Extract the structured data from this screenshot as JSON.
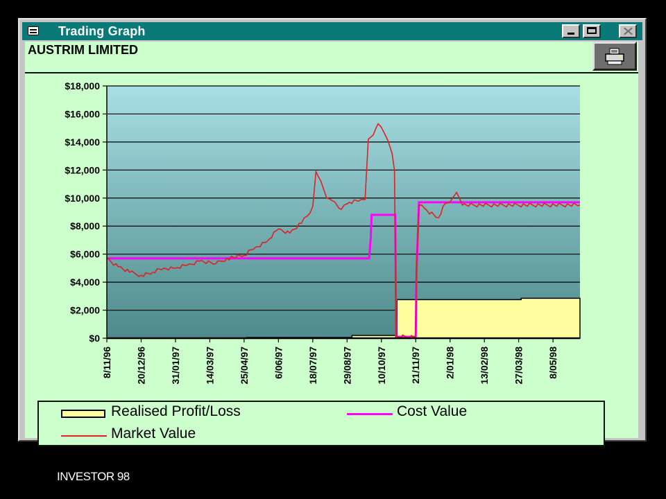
{
  "window": {
    "title": "Trading Graph",
    "company": "AUSTRIM LIMITED"
  },
  "icons": {
    "app": "window-app-icon",
    "minimize": "minimize-icon",
    "maximize": "maximize-icon",
    "close": "close-icon",
    "print": "printer-icon"
  },
  "colors": {
    "titlebar": "#0a7a78",
    "client_bg": "#ccffcc",
    "plot_top": "#a8dfe4",
    "plot_bottom": "#4e8a8c",
    "realised": "#ffffa0",
    "cost": "#ff00ff",
    "market": "#e02020"
  },
  "chart_data": {
    "type": "line",
    "title": "",
    "xlabel": "",
    "ylabel": "",
    "ylim": [
      0,
      18000
    ],
    "yticks": [
      0,
      2000,
      4000,
      6000,
      8000,
      10000,
      12000,
      14000,
      16000,
      18000
    ],
    "ytick_labels": [
      "$0",
      "$2,000",
      "$4,000",
      "$6,000",
      "$8,000",
      "$10,000",
      "$12,000",
      "$14,000",
      "$16,000",
      "$18,000"
    ],
    "xlim": [
      "1996-11-08",
      "1998-06-10"
    ],
    "xticks": [
      "1996-11-08",
      "1996-12-20",
      "1997-01-31",
      "1997-03-14",
      "1997-04-25",
      "1997-06-06",
      "1997-07-18",
      "1997-08-29",
      "1997-10-10",
      "1997-11-21",
      "1998-01-02",
      "1998-02-13",
      "1998-03-27",
      "1998-05-08"
    ],
    "xtick_labels": [
      "8/11/96",
      "20/12/96",
      "31/01/97",
      "14/03/97",
      "25/04/97",
      "6/06/97",
      "18/07/97",
      "29/08/97",
      "10/10/97",
      "21/11/97",
      "2/01/98",
      "13/02/98",
      "27/03/98",
      "8/05/98"
    ],
    "grid": true,
    "legend_position": "bottom",
    "series": [
      {
        "name": "Realised Profit/Loss",
        "style": "area",
        "points": [
          [
            "1996-11-08",
            0
          ],
          [
            "1997-04-25",
            0
          ],
          [
            "1997-04-28",
            50
          ],
          [
            "1997-09-01",
            50
          ],
          [
            "1997-09-04",
            200
          ],
          [
            "1997-10-28",
            200
          ],
          [
            "1997-10-29",
            2750
          ],
          [
            "1998-03-28",
            2750
          ],
          [
            "1998-03-30",
            2850
          ],
          [
            "1998-06-10",
            2850
          ]
        ]
      },
      {
        "name": "Cost Value",
        "style": "line",
        "points": [
          [
            "1996-11-08",
            5700
          ],
          [
            "1997-09-25",
            5700
          ],
          [
            "1997-09-27",
            7200
          ],
          [
            "1997-09-28",
            8800
          ],
          [
            "1997-10-27",
            8800
          ],
          [
            "1997-10-28",
            100
          ],
          [
            "1997-11-21",
            100
          ],
          [
            "1997-11-22",
            4800
          ],
          [
            "1997-11-25",
            9700
          ],
          [
            "1998-06-10",
            9700
          ]
        ]
      },
      {
        "name": "Market Value",
        "style": "line",
        "points": [
          [
            "1996-11-08",
            5700
          ],
          [
            "1996-11-22",
            5100
          ],
          [
            "1996-12-06",
            4700
          ],
          [
            "1996-12-20",
            4500
          ],
          [
            "1997-01-03",
            4700
          ],
          [
            "1997-01-17",
            5000
          ],
          [
            "1997-01-31",
            5000
          ],
          [
            "1997-02-14",
            5200
          ],
          [
            "1997-03-01",
            5500
          ],
          [
            "1997-03-21",
            5300
          ],
          [
            "1997-04-04",
            5700
          ],
          [
            "1997-04-25",
            5900
          ],
          [
            "1997-05-09",
            6500
          ],
          [
            "1997-05-23",
            6900
          ],
          [
            "1997-06-06",
            7800
          ],
          [
            "1997-06-20",
            7500
          ],
          [
            "1997-07-04",
            8200
          ],
          [
            "1997-07-11",
            8700
          ],
          [
            "1997-07-18",
            9400
          ],
          [
            "1997-07-22",
            11900
          ],
          [
            "1997-07-28",
            11200
          ],
          [
            "1997-08-04",
            10000
          ],
          [
            "1997-08-11",
            9800
          ],
          [
            "1997-08-22",
            9200
          ],
          [
            "1997-09-01",
            9700
          ],
          [
            "1997-09-15",
            9900
          ],
          [
            "1997-09-20",
            9900
          ],
          [
            "1997-09-24",
            14200
          ],
          [
            "1997-09-30",
            14500
          ],
          [
            "1997-10-06",
            15300
          ],
          [
            "1997-10-13",
            14700
          ],
          [
            "1997-10-18",
            14100
          ],
          [
            "1997-10-23",
            13200
          ],
          [
            "1997-10-26",
            12000
          ],
          [
            "1997-10-28",
            100
          ],
          [
            "1997-11-21",
            100
          ],
          [
            "1997-11-22",
            5000
          ],
          [
            "1997-11-25",
            9500
          ],
          [
            "1997-12-05",
            9100
          ],
          [
            "1997-12-19",
            8600
          ],
          [
            "1997-12-27",
            9600
          ],
          [
            "1998-01-04",
            9900
          ],
          [
            "1998-01-10",
            10400
          ],
          [
            "1998-01-17",
            9500
          ],
          [
            "1998-06-10",
            9500
          ]
        ]
      }
    ]
  },
  "legend": {
    "realised_label": "Realised Profit/Loss",
    "cost_label": "Cost Value",
    "market_label": "Market Value"
  },
  "footer": {
    "text": "INVESTOR 98"
  }
}
